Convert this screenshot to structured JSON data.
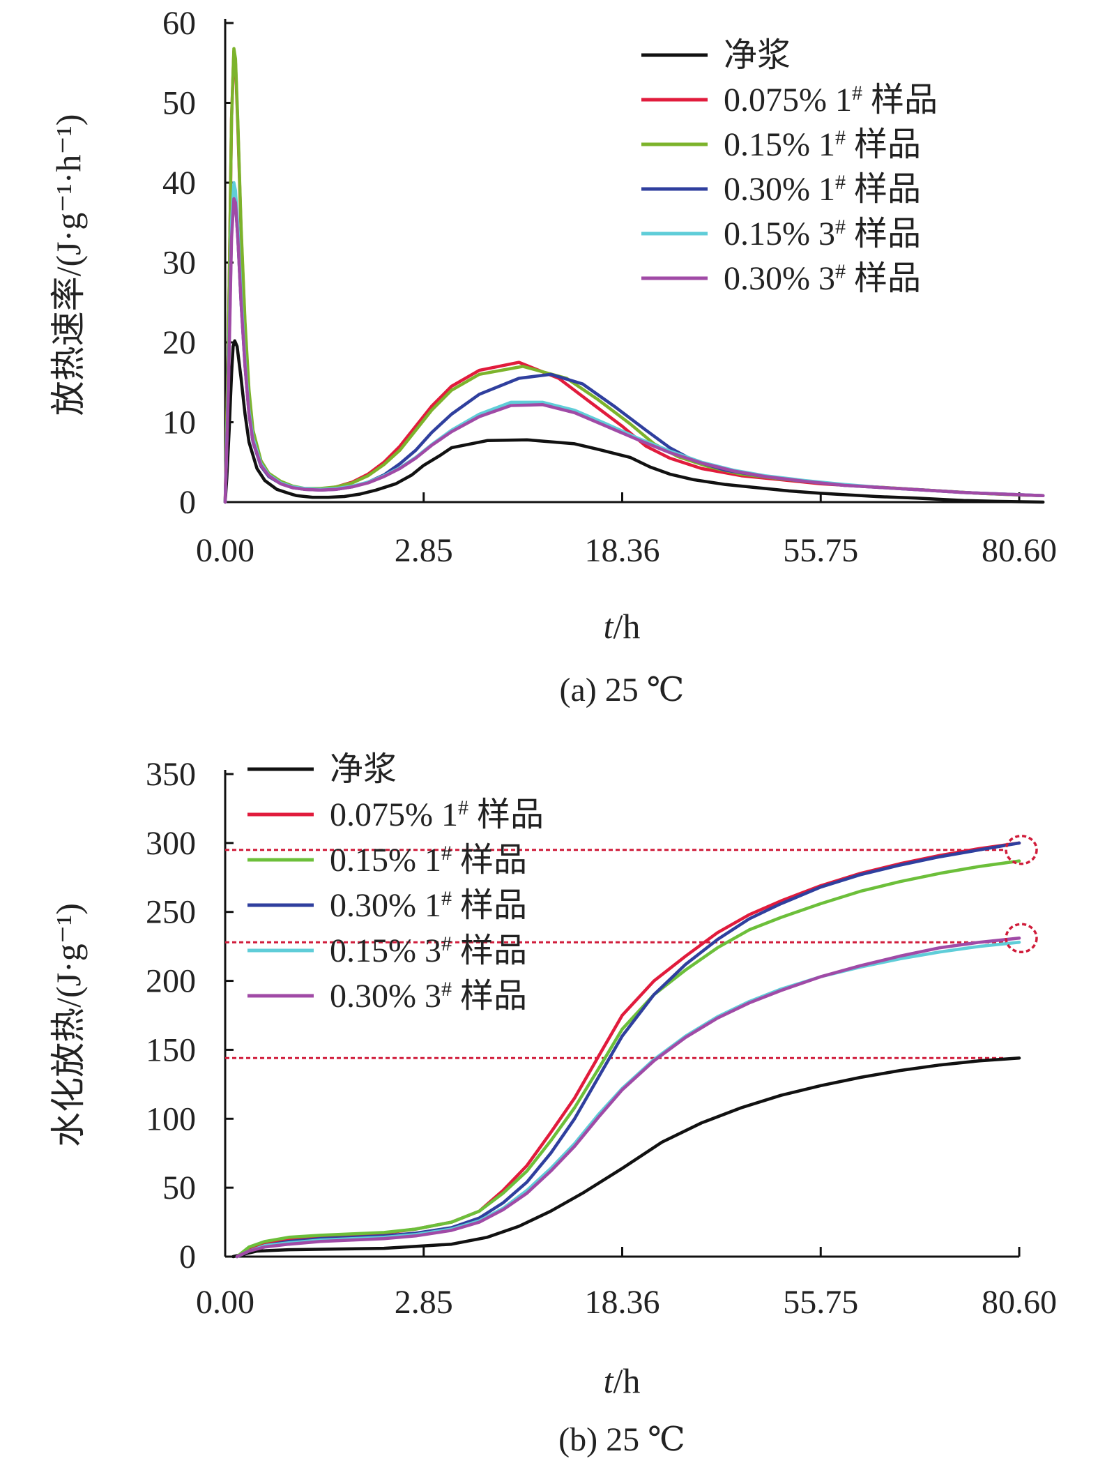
{
  "chart_data": [
    {
      "type": "line",
      "caption": "(a) 25 ℃",
      "xlabel_italic": "t",
      "xlabel_unit": "/h",
      "ylabel": "放热速率/(J·g⁻¹·h⁻¹)",
      "x_ticks": [
        "0.00",
        "2.85",
        "18.36",
        "55.75",
        "80.60"
      ],
      "y_ticks": [
        0,
        10,
        20,
        30,
        40,
        50,
        60
      ],
      "ylim": [
        0,
        60
      ],
      "grid": false,
      "legend_position": "top-right",
      "series": [
        {
          "name": "净浆",
          "color": "#111111",
          "x": [
            0,
            0.02,
            0.05,
            0.08,
            0.1,
            0.12,
            0.15,
            0.2,
            0.25,
            0.3,
            0.4,
            0.5,
            0.65,
            0.8,
            0.9,
            1.1,
            1.3,
            1.5,
            1.7,
            1.9,
            2.15,
            2.35,
            2.5,
            2.7,
            2.85,
            3.3,
            3.8,
            4.4,
            4.7,
            5.1,
            5.35,
            5.6,
            5.9,
            6.3,
            6.7,
            7.1,
            7.5,
            8.2,
            8.7,
            9.3,
            9.7,
            10.3
          ],
          "y": [
            0,
            3,
            9,
            16,
            19.5,
            20.2,
            19.5,
            15.5,
            11,
            7.5,
            4.2,
            2.7,
            1.6,
            1.1,
            0.8,
            0.6,
            0.6,
            0.7,
            1,
            1.5,
            2.3,
            3.4,
            4.6,
            5.8,
            6.8,
            7.7,
            7.8,
            7.3,
            6.6,
            5.6,
            4.4,
            3.5,
            2.8,
            2.2,
            1.8,
            1.4,
            1.1,
            0.7,
            0.5,
            0.2,
            0.1,
            0
          ]
        },
        {
          "name": "0.075% 1# 样品",
          "color": "#e11b3c",
          "x": [
            0,
            0.04,
            0.08,
            0.11,
            0.13,
            0.16,
            0.2,
            0.25,
            0.3,
            0.35,
            0.45,
            0.55,
            0.7,
            0.85,
            1.0,
            1.2,
            1.4,
            1.6,
            1.8,
            2.0,
            2.2,
            2.4,
            2.6,
            2.85,
            3.2,
            3.7,
            4.2,
            4.6,
            5.0,
            5.3,
            5.6,
            6.0,
            6.5,
            7.0,
            7.5,
            8.0,
            8.5,
            9.0,
            9.5,
            10.0,
            10.3
          ],
          "y": [
            0,
            20,
            48,
            56.5,
            55,
            47,
            34,
            22,
            13.5,
            8.5,
            5,
            3.5,
            2.5,
            1.9,
            1.6,
            1.6,
            1.9,
            2.5,
            3.5,
            5,
            7,
            9.5,
            12,
            14.5,
            16.5,
            17.5,
            15.5,
            12.5,
            9.5,
            7,
            5.5,
            4.2,
            3.3,
            2.8,
            2.3,
            2,
            1.7,
            1.4,
            1.1,
            0.9,
            0.8
          ]
        },
        {
          "name": "0.15% 1# 样品",
          "color": "#7cb32b",
          "x": [
            0,
            0.04,
            0.08,
            0.11,
            0.13,
            0.16,
            0.2,
            0.25,
            0.3,
            0.35,
            0.45,
            0.55,
            0.7,
            0.85,
            1.0,
            1.2,
            1.4,
            1.6,
            1.8,
            2.0,
            2.2,
            2.4,
            2.6,
            2.85,
            3.2,
            3.75,
            4.3,
            4.7,
            5.1,
            5.4,
            5.7,
            6.1,
            6.5,
            7.0,
            7.5,
            8.0,
            8.5,
            9.0,
            9.5,
            10.0,
            10.3
          ],
          "y": [
            0,
            20,
            48,
            56.8,
            55.5,
            47.5,
            34.5,
            22.5,
            14,
            9,
            5.2,
            3.6,
            2.6,
            2,
            1.7,
            1.7,
            1.9,
            2.4,
            3.3,
            4.7,
            6.5,
            9,
            11.5,
            14,
            16,
            17,
            15.5,
            12.8,
            9.8,
            7.3,
            5.7,
            4.4,
            3.5,
            2.9,
            2.4,
            2,
            1.7,
            1.4,
            1.1,
            0.9,
            0.8
          ]
        },
        {
          "name": "0.30% 1# 样品",
          "color": "#2f3f9e",
          "x": [
            0,
            0.04,
            0.08,
            0.11,
            0.13,
            0.16,
            0.2,
            0.25,
            0.3,
            0.35,
            0.45,
            0.55,
            0.7,
            0.85,
            1.0,
            1.2,
            1.4,
            1.6,
            1.8,
            2.0,
            2.2,
            2.4,
            2.6,
            2.85,
            3.2,
            3.7,
            4.1,
            4.5,
            4.9,
            5.3,
            5.6,
            5.9,
            6.3,
            6.8,
            7.3,
            7.8,
            8.3,
            8.8,
            9.3,
            9.8,
            10.3
          ],
          "y": [
            0,
            15,
            34,
            38,
            37.5,
            33,
            25,
            17,
            11,
            7.5,
            4.5,
            3.2,
            2.3,
            1.8,
            1.6,
            1.5,
            1.6,
            1.9,
            2.5,
            3.4,
            4.8,
            6.5,
            8.7,
            11,
            13.5,
            15.5,
            16,
            14.8,
            12,
            9,
            6.8,
            5.2,
            4,
            3.2,
            2.6,
            2.1,
            1.8,
            1.5,
            1.2,
            1,
            0.8
          ]
        },
        {
          "name": "0.15% 3# 样品",
          "color": "#5fcdd8",
          "x": [
            0,
            0.04,
            0.08,
            0.11,
            0.13,
            0.16,
            0.2,
            0.25,
            0.3,
            0.35,
            0.45,
            0.55,
            0.7,
            0.85,
            1.0,
            1.2,
            1.4,
            1.6,
            1.8,
            2.0,
            2.2,
            2.4,
            2.6,
            2.85,
            3.2,
            3.6,
            4.0,
            4.4,
            4.8,
            5.2,
            5.6,
            6.0,
            6.4,
            6.8,
            7.3,
            7.8,
            8.3,
            8.8,
            9.3,
            9.8,
            10.3
          ],
          "y": [
            0,
            15,
            35,
            40,
            39,
            34.5,
            26,
            17.5,
            11.5,
            8,
            4.8,
            3.4,
            2.4,
            1.9,
            1.7,
            1.6,
            1.7,
            2,
            2.5,
            3.3,
            4.3,
            5.6,
            7.2,
            9,
            11,
            12.5,
            12.5,
            11.5,
            9.8,
            8,
            6.4,
            5,
            4,
            3.3,
            2.7,
            2.2,
            1.8,
            1.5,
            1.2,
            1,
            0.8
          ]
        },
        {
          "name": "0.30% 3# 样品",
          "color": "#a04aa6",
          "x": [
            0,
            0.04,
            0.08,
            0.11,
            0.13,
            0.16,
            0.2,
            0.25,
            0.3,
            0.35,
            0.45,
            0.55,
            0.7,
            0.85,
            1.0,
            1.2,
            1.4,
            1.6,
            1.8,
            2.0,
            2.2,
            2.4,
            2.6,
            2.85,
            3.2,
            3.6,
            4.0,
            4.4,
            4.8,
            5.2,
            5.6,
            6.0,
            6.4,
            6.8,
            7.3,
            7.8,
            8.3,
            8.8,
            9.3,
            9.8,
            10.3
          ],
          "y": [
            0,
            14,
            33,
            38,
            37.5,
            33,
            25,
            17,
            11,
            7.6,
            4.6,
            3.3,
            2.3,
            1.8,
            1.6,
            1.5,
            1.6,
            1.9,
            2.4,
            3.2,
            4.2,
            5.5,
            7.1,
            8.8,
            10.7,
            12.1,
            12.2,
            11.2,
            9.5,
            7.8,
            6.2,
            4.9,
            3.9,
            3.2,
            2.6,
            2.1,
            1.8,
            1.5,
            1.2,
            1,
            0.8
          ]
        }
      ]
    },
    {
      "type": "line",
      "caption": "(b) 25 ℃",
      "xlabel_italic": "t",
      "xlabel_unit": "/h",
      "ylabel": "水化放热/(J·g⁻¹)",
      "x_ticks": [
        "0.00",
        "2.85",
        "18.36",
        "55.75",
        "80.60"
      ],
      "y_ticks": [
        0,
        50,
        100,
        150,
        200,
        250,
        300,
        350
      ],
      "ylim": [
        0,
        350
      ],
      "grid": false,
      "legend_position": "top-left",
      "reference_lines_y": [
        295,
        228,
        144
      ],
      "highlight_circles": [
        {
          "x": 10.0,
          "y": 295
        },
        {
          "x": 10.0,
          "y": 231
        }
      ],
      "series": [
        {
          "name": "净浆",
          "color": "#111111",
          "x": [
            0.1,
            0.4,
            0.8,
            1.4,
            2.0,
            2.85,
            3.3,
            3.7,
            4.1,
            4.5,
            5.0,
            5.5,
            6.0,
            6.5,
            7.0,
            7.5,
            8.0,
            8.5,
            9.0,
            9.5,
            10.0
          ],
          "y": [
            0,
            4,
            5,
            5.5,
            6,
            9,
            14,
            22,
            33,
            46,
            64,
            83,
            97,
            108,
            117,
            124,
            130,
            135,
            139,
            142,
            144
          ]
        },
        {
          "name": "0.075% 1# 样品",
          "color": "#e11b3c",
          "x": [
            0.15,
            0.3,
            0.5,
            0.8,
            1.2,
            1.6,
            2.0,
            2.4,
            2.85,
            3.2,
            3.5,
            3.8,
            4.1,
            4.4,
            4.7,
            5.0,
            5.4,
            5.8,
            6.2,
            6.6,
            7.0,
            7.5,
            8.0,
            8.5,
            9.0,
            9.5,
            10.0
          ],
          "y": [
            0,
            6,
            10,
            13,
            15,
            16,
            17,
            20,
            25,
            33,
            48,
            66,
            90,
            115,
            145,
            175,
            200,
            218,
            235,
            248,
            258,
            269,
            278,
            285,
            291,
            296,
            300
          ]
        },
        {
          "name": "0.15% 1# 样品",
          "color": "#6cbf3a",
          "x": [
            0.15,
            0.3,
            0.5,
            0.8,
            1.2,
            1.6,
            2.0,
            2.4,
            2.85,
            3.2,
            3.5,
            3.8,
            4.1,
            4.4,
            4.7,
            5.0,
            5.4,
            5.8,
            6.2,
            6.6,
            7.0,
            7.5,
            8.0,
            8.5,
            9.0,
            9.5,
            10.0
          ],
          "y": [
            0,
            7,
            11,
            14,
            15.5,
            16.5,
            17.5,
            20,
            25,
            33,
            46,
            62,
            84,
            108,
            136,
            165,
            190,
            208,
            224,
            237,
            246,
            256,
            265,
            272,
            278,
            283,
            287
          ]
        },
        {
          "name": "0.30% 1# 样品",
          "color": "#2f3f9e",
          "x": [
            0.15,
            0.3,
            0.5,
            0.8,
            1.2,
            1.6,
            2.0,
            2.4,
            2.85,
            3.2,
            3.5,
            3.8,
            4.1,
            4.4,
            4.7,
            5.0,
            5.4,
            5.8,
            6.2,
            6.6,
            7.0,
            7.5,
            8.0,
            8.5,
            9.0,
            9.5,
            10.0
          ],
          "y": [
            0,
            4,
            8,
            11,
            13,
            14,
            15,
            17,
            21,
            28,
            39,
            54,
            75,
            100,
            130,
            160,
            190,
            212,
            230,
            245,
            256,
            268,
            277,
            284,
            290,
            295,
            300
          ]
        },
        {
          "name": "0.15% 3# 样品",
          "color": "#5fcdd8",
          "x": [
            0.15,
            0.3,
            0.5,
            0.8,
            1.2,
            1.6,
            2.0,
            2.4,
            2.85,
            3.2,
            3.5,
            3.8,
            4.1,
            4.4,
            4.7,
            5.0,
            5.4,
            5.8,
            6.2,
            6.6,
            7.0,
            7.5,
            8.0,
            8.5,
            9.0,
            9.5,
            10.0
          ],
          "y": [
            0,
            4,
            8,
            10,
            12,
            13,
            14,
            16,
            20,
            26,
            35,
            48,
            64,
            82,
            103,
            122,
            143,
            160,
            174,
            185,
            194,
            203,
            210,
            216,
            221,
            225,
            228
          ]
        },
        {
          "name": "0.30% 3# 样品",
          "color": "#a04aa6",
          "x": [
            0.15,
            0.3,
            0.5,
            0.8,
            1.2,
            1.6,
            2.0,
            2.4,
            2.85,
            3.2,
            3.5,
            3.8,
            4.1,
            4.4,
            4.7,
            5.0,
            5.4,
            5.8,
            6.2,
            6.6,
            7.0,
            7.5,
            8.0,
            8.5,
            9.0,
            9.5,
            10.0
          ],
          "y": [
            0,
            4,
            7,
            9,
            11,
            12,
            13,
            15,
            19,
            25,
            34,
            46,
            62,
            80,
            101,
            121,
            142,
            159,
            173,
            184,
            193,
            203,
            211,
            218,
            224,
            228,
            231
          ]
        }
      ]
    }
  ]
}
